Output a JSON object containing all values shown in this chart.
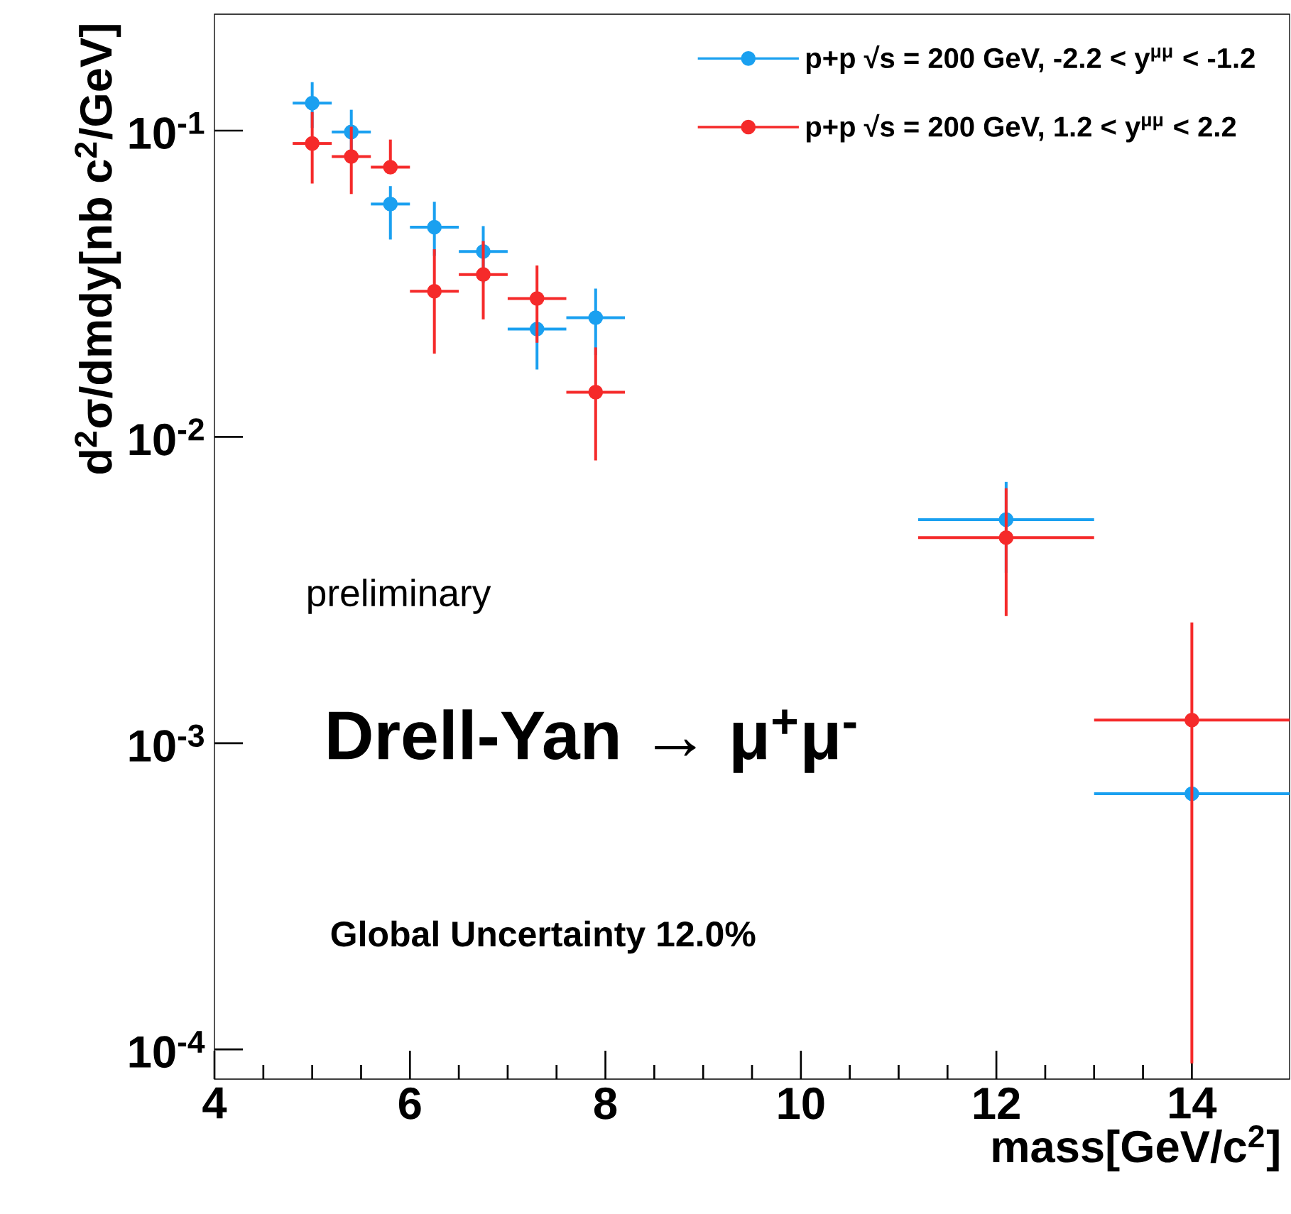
{
  "chart_data": {
    "type": "scatter",
    "xlabel": "mass[GeV/c$^{2}$]",
    "ylabel": "d$^{2}$σ/dmdy[nb c$^{2}$/GeV]",
    "annotations": [
      "preliminary",
      "Drell-Yan → μ$^{+}$μ$^{-}$",
      "Global Uncertainty 12.0%"
    ],
    "x": [
      5.0,
      5.4,
      5.8,
      6.25,
      6.75,
      7.3,
      7.9,
      12.1,
      14.0
    ],
    "series": [
      {
        "name": "p+p  √s = 200 GeV, -2.2 < y$^{μμ}$ < -1.2",
        "color": "#1aa0f0",
        "values": [
          0.123,
          0.099,
          0.0576,
          0.0484,
          0.0403,
          0.0225,
          0.0245,
          0.00537,
          0.000684
        ],
        "errors": [
          [
            0.102,
            0.144
          ],
          [
            0.081,
            0.117
          ],
          [
            0.0441,
            0.0659
          ],
          [
            0.039,
            0.0586
          ],
          [
            0.0318,
            0.0488
          ],
          [
            0.0166,
            0.0225
          ],
          [
            0.0185,
            0.0305
          ],
          [
            0.0036,
            0.00713
          ],
          null
        ],
        "xerrors": [
          0.2,
          0.2,
          0.2,
          0.25,
          0.25,
          0.3,
          0.3,
          0.9,
          1.0
        ]
      },
      {
        "name": "p+p  √s = 200 GeV, 1.2 < y$^{μμ}$ < 2.2",
        "color": "#f52a2a",
        "values": [
          0.0908,
          0.0823,
          0.076,
          0.0299,
          0.0339,
          0.0283,
          0.014,
          0.00469,
          0.00119
        ],
        "errors": [
          [
            0.0672,
            0.115
          ],
          [
            0.0621,
            0.103
          ],
          [
            0.076,
            0.0935
          ],
          [
            0.0187,
            0.041
          ],
          [
            0.0242,
            0.0436
          ],
          [
            0.0203,
            0.0363
          ],
          [
            0.00838,
            0.0196
          ],
          [
            0.0026,
            0.0068
          ],
          [
            9e-05,
            0.00248
          ]
        ],
        "xerrors": [
          0.2,
          0.2,
          0.2,
          0.25,
          0.25,
          0.3,
          0.3,
          0.9,
          1.0
        ]
      }
    ],
    "xlim": [
      4,
      15
    ],
    "ylim": [
      8e-05,
      0.24
    ],
    "log": "y",
    "xticks": [
      4,
      6,
      8,
      10,
      12,
      14
    ],
    "yticks": [
      {
        "value": 0.0001,
        "label": "10$^{-4}$"
      },
      {
        "value": 0.001,
        "label": "10$^{-3}$"
      },
      {
        "value": 0.01,
        "label": "10$^{-2}$"
      },
      {
        "value": 0.1,
        "label": "10$^{-1}$"
      }
    ],
    "marker": "circle",
    "legend": "top right",
    "grid": false
  }
}
